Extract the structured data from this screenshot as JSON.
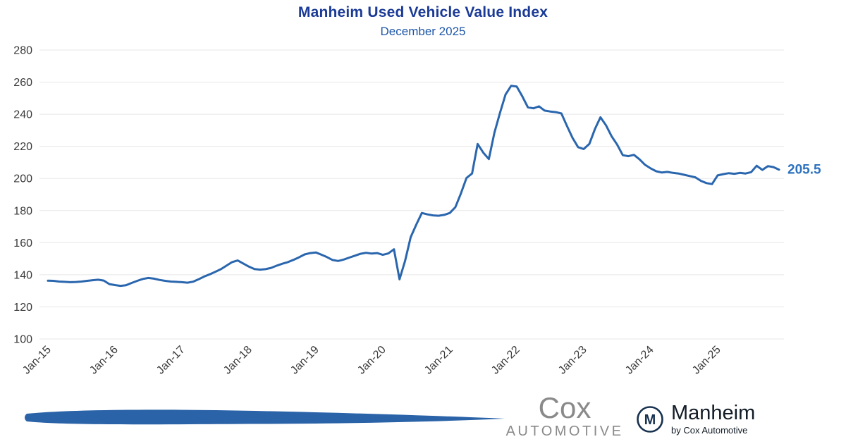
{
  "chart_data": {
    "type": "line",
    "title": "Manheim Used Vehicle Value Index",
    "subtitle": "December 2025",
    "xlabel": "",
    "ylabel": "",
    "ylim": [
      100,
      280
    ],
    "y_ticks": [
      100,
      120,
      140,
      160,
      180,
      200,
      220,
      240,
      260,
      280
    ],
    "x_tick_labels": [
      "Jan-15",
      "Jan-16",
      "Jan-17",
      "Jan-18",
      "Jan-19",
      "Jan-20",
      "Jan-21",
      "Jan-22",
      "Jan-23",
      "Jan-24",
      "Jan-25"
    ],
    "x_tick_positions": [
      0,
      12,
      24,
      36,
      48,
      60,
      72,
      84,
      96,
      108,
      120
    ],
    "x_range": "monthly from Jan-2015 to Dec-2025",
    "grid": true,
    "legend_position": "none",
    "line_color": "#2a66ae",
    "end_label": "205.5",
    "end_label_color": "#2d72bf",
    "series": [
      {
        "name": "Manheim Used Vehicle Value Index",
        "monthly_values": [
          136.3,
          136.2,
          135.8,
          135.6,
          135.4,
          135.5,
          135.8,
          136.2,
          136.6,
          136.9,
          136.4,
          134.2,
          133.6,
          133.1,
          133.5,
          134.9,
          136.2,
          137.4,
          138.0,
          137.6,
          136.8,
          136.2,
          135.8,
          135.6,
          135.4,
          135.1,
          135.7,
          137.2,
          138.9,
          140.3,
          141.9,
          143.5,
          145.7,
          147.9,
          148.9,
          147.0,
          145.1,
          143.6,
          143.2,
          143.5,
          144.3,
          145.7,
          146.9,
          147.9,
          149.3,
          150.9,
          152.7,
          153.5,
          153.9,
          152.5,
          151.0,
          149.2,
          148.6,
          149.5,
          150.7,
          151.9,
          153.1,
          153.7,
          153.2,
          153.5,
          152.4,
          153.3,
          155.9,
          137.2,
          148.7,
          163.4,
          171.3,
          178.5,
          177.6,
          177.0,
          176.8,
          177.3,
          178.5,
          182.1,
          190.7,
          200.3,
          203.1,
          221.5,
          216.1,
          212.1,
          228.5,
          240.9,
          252.3,
          257.7,
          257.3,
          251.1,
          244.3,
          243.7,
          244.9,
          242.3,
          241.7,
          241.3,
          240.5,
          232.7,
          225.3,
          219.5,
          218.3,
          221.5,
          230.7,
          238.1,
          233.1,
          226.3,
          221.1,
          214.5,
          213.9,
          214.7,
          211.9,
          208.5,
          206.3,
          204.5,
          203.7,
          204.1,
          203.5,
          203.1,
          202.3,
          201.5,
          200.7,
          198.5,
          197.1,
          196.5,
          201.9,
          202.7,
          203.3,
          202.9,
          203.5,
          203.1,
          203.9,
          207.9,
          205.3,
          207.7,
          207.1,
          205.5
        ]
      }
    ]
  },
  "footer": {
    "cox_logo": {
      "line1": "Cox",
      "line2": "AUTOMOTIVE"
    },
    "manheim_logo": {
      "monogram": "M",
      "name": "Manheim",
      "tagline": "by Cox Automotive"
    }
  }
}
